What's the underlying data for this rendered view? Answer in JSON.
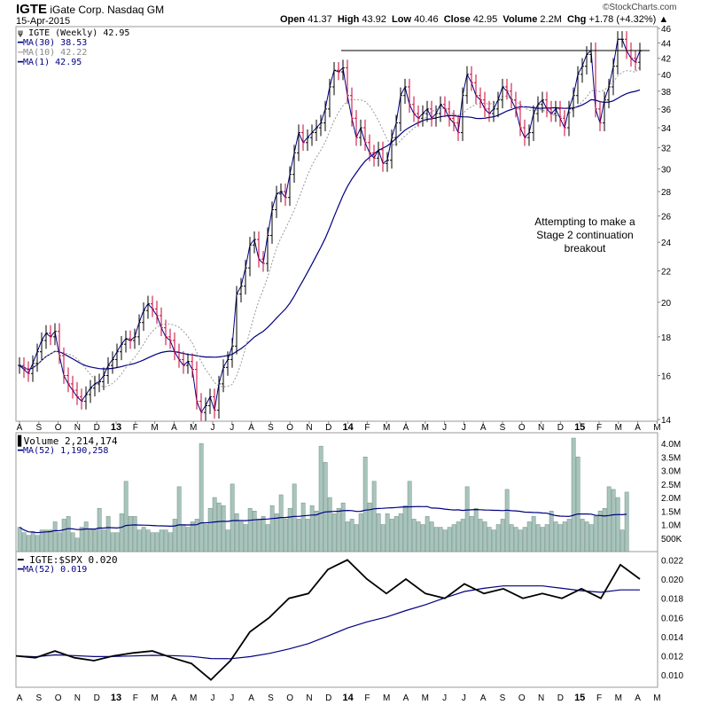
{
  "header": {
    "symbol": "IGTE",
    "company": "iGate Corp.",
    "exchange": "Nasdaq GM",
    "date": "15-Apr-2015",
    "watermark": "©StockCharts.com",
    "open_label": "Open",
    "open": "41.37",
    "high_label": "High",
    "high": "43.92",
    "low_label": "Low",
    "low": "40.46",
    "close_label": "Close",
    "close": "42.95",
    "volume_label": "Volume",
    "volume": "2.2M",
    "chg_label": "Chg",
    "chg": "+1.78 (+4.32%)"
  },
  "legend": {
    "price": "IGTE (Weekly) 42.95",
    "ma30": "MA(30) 38.53",
    "ma10": "MA(10) 42.22",
    "ma1": "MA(1) 42.95",
    "volume": "Volume 2,214,174",
    "vol_ma": "MA(52) 1,190,258",
    "rs": "IGTE:$SPX 0.020",
    "rs_ma": "MA(52) 0.019"
  },
  "annotation": [
    "Attempting to make a",
    "Stage 2 continuation",
    "breakout"
  ],
  "colors": {
    "up": "#000000",
    "down": "#cc0033",
    "ma30": "#000080",
    "ma10": "#999999",
    "volume": "#a8c4bc",
    "volume_edge": "#6f8f86"
  },
  "chart_data": [
    {
      "type": "ohlc",
      "title": "IGTE (Weekly)",
      "scale": "log",
      "ylim": [
        14,
        46
      ],
      "yticks": [
        14,
        16,
        18,
        20,
        22,
        24,
        26,
        28,
        30,
        32,
        34,
        36,
        38,
        40,
        42,
        44,
        46
      ],
      "months": [
        "A",
        "S",
        "O",
        "N",
        "D",
        "13",
        "F",
        "M",
        "A",
        "M",
        "J",
        "J",
        "A",
        "S",
        "O",
        "N",
        "D",
        "14",
        "F",
        "M",
        "A",
        "M",
        "J",
        "J",
        "A",
        "S",
        "O",
        "N",
        "D",
        "15",
        "F",
        "M",
        "A",
        "M"
      ],
      "resistance": 43,
      "close": [
        16.5,
        16.3,
        16.1,
        16.6,
        17.2,
        17.8,
        18.2,
        18.0,
        18.3,
        17.0,
        16.0,
        15.6,
        15.3,
        15.0,
        14.8,
        15.1,
        15.4,
        15.6,
        15.7,
        16.0,
        16.5,
        16.8,
        17.2,
        17.6,
        17.9,
        17.8,
        18.0,
        18.8,
        19.5,
        19.9,
        19.6,
        19.2,
        18.5,
        18.0,
        17.8,
        17.2,
        16.8,
        16.5,
        16.7,
        16.3,
        14.8,
        14.3,
        14.6,
        15.0,
        14.4,
        15.6,
        16.4,
        16.8,
        17.5,
        20.5,
        21.0,
        22.2,
        23.8,
        24.2,
        22.8,
        22.5,
        24.5,
        26.5,
        27.8,
        28.0,
        27.5,
        29.5,
        31.5,
        33.5,
        32.5,
        33.0,
        33.5,
        34.0,
        34.5,
        36.0,
        38.5,
        40.5,
        40.3,
        40.8,
        37.5,
        35.0,
        33.0,
        34.0,
        32.5,
        31.5,
        31.0,
        31.8,
        30.5,
        30.8,
        33.0,
        34.5,
        37.5,
        38.5,
        36.5,
        35.5,
        35.0,
        35.5,
        36.0,
        35.0,
        35.5,
        36.5,
        36.0,
        35.0,
        34.5,
        33.5,
        37.5,
        40.0,
        39.0,
        37.5,
        37.0,
        36.0,
        35.5,
        36.0,
        37.0,
        38.5,
        38.0,
        37.0,
        36.0,
        34.0,
        33.0,
        33.5,
        35.5,
        36.5,
        37.0,
        36.0,
        35.5,
        36.0,
        35.0,
        34.0,
        36.0,
        37.5,
        40.0,
        41.0,
        42.5,
        43.0,
        36.0,
        34.5,
        37.0,
        38.5,
        41.0,
        44.5,
        44.5,
        43.0,
        42.0,
        41.5,
        42.95
      ]
    },
    {
      "type": "bar",
      "title": "Volume",
      "unit": "M",
      "ylim": [
        0,
        4.2
      ],
      "yticks": [
        "500K",
        "1.0M",
        "1.5M",
        "2.0M",
        "2.5M",
        "3.0M",
        "3.5M",
        "4.0M"
      ],
      "values": [
        0.9,
        0.7,
        0.6,
        0.7,
        0.6,
        0.8,
        0.8,
        0.8,
        1.1,
        0.7,
        1.2,
        1.3,
        0.7,
        0.5,
        0.9,
        1.1,
        0.8,
        0.8,
        1.6,
        0.8,
        1.3,
        0.7,
        0.7,
        1.4,
        2.6,
        1.3,
        1.3,
        0.8,
        0.9,
        0.8,
        0.7,
        0.7,
        0.8,
        0.8,
        0.7,
        1.2,
        2.4,
        1.0,
        0.9,
        1.1,
        1.2,
        4.0,
        1.0,
        1.6,
        2.0,
        1.8,
        1.7,
        0.8,
        2.5,
        1.4,
        1.1,
        1.0,
        1.6,
        1.5,
        1.2,
        1.3,
        1.0,
        1.7,
        1.4,
        2.1,
        1.2,
        1.6,
        2.5,
        1.2,
        1.8,
        1.2,
        1.7,
        1.5,
        3.9,
        3.3,
        2.0,
        1.4,
        1.6,
        1.8,
        1.1,
        1.2,
        1.0,
        1.4,
        3.5,
        1.8,
        2.6,
        1.4,
        1.0,
        1.4,
        1.2,
        1.3,
        1.4,
        1.7,
        2.6,
        1.2,
        1.1,
        1.0,
        1.3,
        1.1,
        0.9,
        0.9,
        0.8,
        0.9,
        1.0,
        1.1,
        1.2,
        2.4,
        1.3,
        1.6,
        1.2,
        1.1,
        0.9,
        0.8,
        1.0,
        1.2,
        2.3,
        1.0,
        0.9,
        0.8,
        0.9,
        1.1,
        1.3,
        1.0,
        0.9,
        1.0,
        1.5,
        1.1,
        1.0,
        1.1,
        1.2,
        4.2,
        3.5,
        1.2,
        1.1,
        1.0,
        1.3,
        1.5,
        1.6,
        2.4,
        2.3,
        2.0,
        0.8,
        2.2
      ]
    },
    {
      "type": "line",
      "title": "IGTE:$SPX",
      "ylim": [
        0.009,
        0.0225
      ],
      "yticks": [
        0.01,
        0.012,
        0.014,
        0.016,
        0.018,
        0.02,
        0.022
      ],
      "values": [
        0.012,
        0.0118,
        0.0125,
        0.0118,
        0.0115,
        0.012,
        0.0123,
        0.0125,
        0.0118,
        0.0112,
        0.0095,
        0.0115,
        0.0145,
        0.016,
        0.018,
        0.0185,
        0.021,
        0.022,
        0.02,
        0.0185,
        0.02,
        0.0185,
        0.018,
        0.0195,
        0.0185,
        0.019,
        0.018,
        0.0185,
        0.018,
        0.019,
        0.018,
        0.0215,
        0.02
      ]
    }
  ]
}
